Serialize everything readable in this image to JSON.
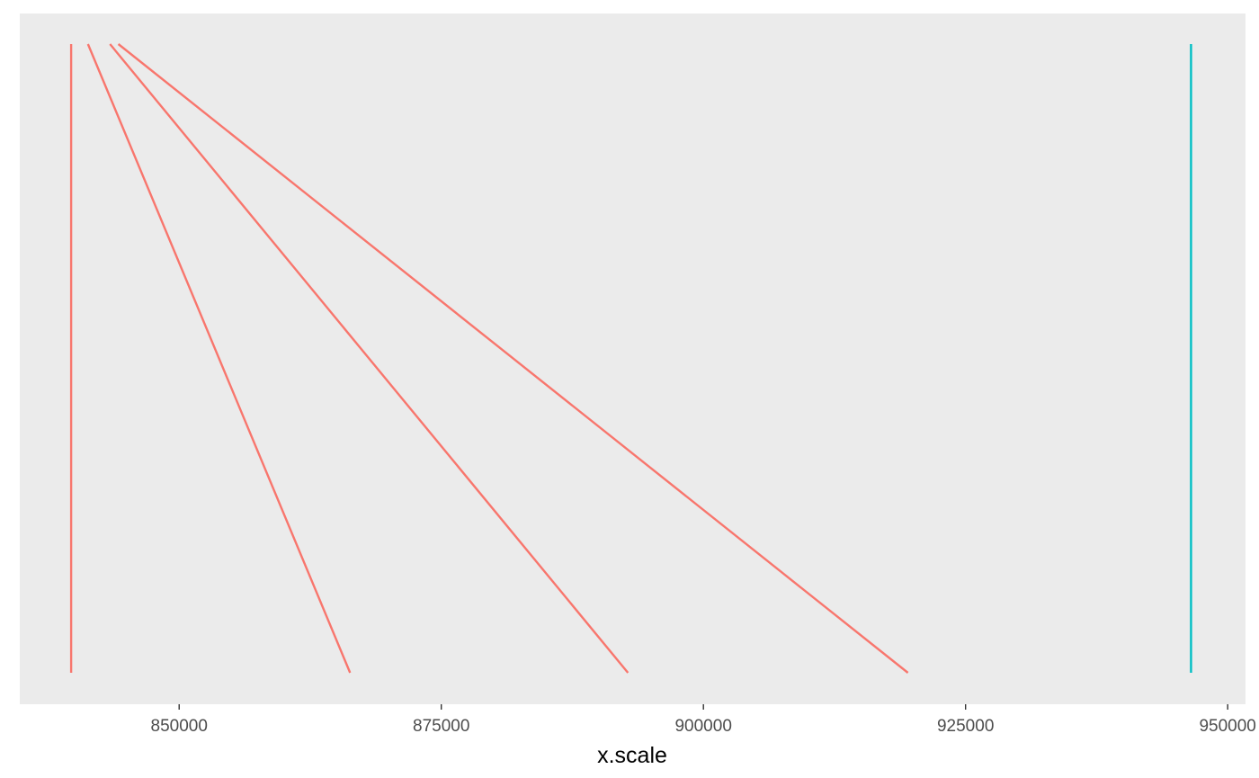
{
  "chart_data": {
    "type": "line",
    "title": "",
    "xlabel": "x.scale",
    "ylabel": "",
    "xlim": [
      834800,
      951700
    ],
    "ylim": [
      0,
      1
    ],
    "grid": false,
    "legend": "none",
    "x_ticks": [
      {
        "value": 850000,
        "label": "850000"
      },
      {
        "value": 875000,
        "label": "875000"
      },
      {
        "value": 900000,
        "label": "900000"
      },
      {
        "value": 925000,
        "label": "925000"
      },
      {
        "value": 950000,
        "label": "950000"
      }
    ],
    "series": [
      {
        "color": "#F8766D",
        "points": [
          {
            "x": 839700,
            "y": 1
          },
          {
            "x": 839700,
            "y": 0
          }
        ]
      },
      {
        "color": "#F8766D",
        "points": [
          {
            "x": 841300,
            "y": 1
          },
          {
            "x": 866300,
            "y": 0
          }
        ]
      },
      {
        "color": "#F8766D",
        "points": [
          {
            "x": 843400,
            "y": 1
          },
          {
            "x": 892800,
            "y": 0
          }
        ]
      },
      {
        "color": "#F8766D",
        "points": [
          {
            "x": 844200,
            "y": 1
          },
          {
            "x": 919500,
            "y": 0
          }
        ]
      },
      {
        "color": "#00BFC4",
        "points": [
          {
            "x": 946500,
            "y": 1
          },
          {
            "x": 946500,
            "y": 0
          }
        ]
      }
    ]
  }
}
